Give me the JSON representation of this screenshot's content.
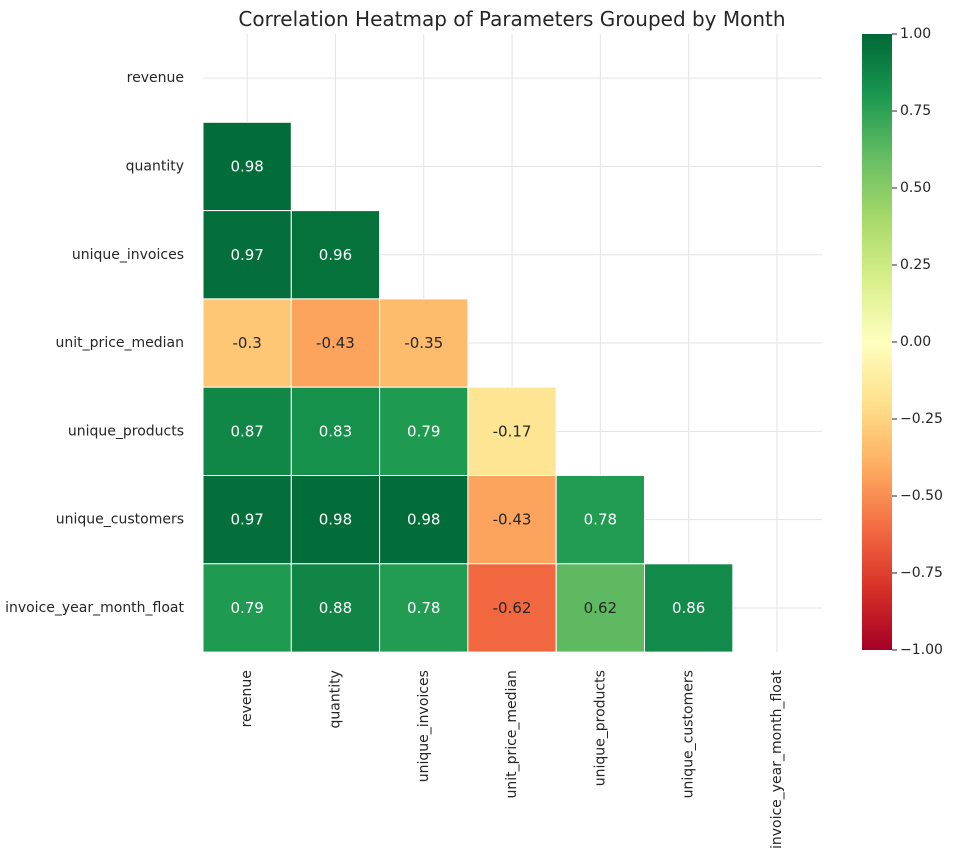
{
  "chart_data": {
    "type": "heatmap",
    "title": "Correlation Heatmap of Parameters Grouped by Month",
    "xlabel": "",
    "ylabel": "",
    "row_labels": [
      "revenue",
      "quantity",
      "unique_invoices",
      "unit_price_median",
      "unique_products",
      "unique_customers",
      "invoice_year_month_float"
    ],
    "col_labels": [
      "revenue",
      "quantity",
      "unique_invoices",
      "unit_price_median",
      "unique_products",
      "unique_customers",
      "invoice_year_month_float"
    ],
    "mask": "upper-triangle-including-diagonal",
    "values": [
      [
        null,
        null,
        null,
        null,
        null,
        null,
        null
      ],
      [
        0.98,
        null,
        null,
        null,
        null,
        null,
        null
      ],
      [
        0.97,
        0.96,
        null,
        null,
        null,
        null,
        null
      ],
      [
        -0.3,
        -0.43,
        -0.35,
        null,
        null,
        null,
        null
      ],
      [
        0.87,
        0.83,
        0.79,
        -0.17,
        null,
        null,
        null
      ],
      [
        0.97,
        0.98,
        0.98,
        -0.43,
        0.78,
        null,
        null
      ],
      [
        0.79,
        0.88,
        0.78,
        -0.62,
        0.62,
        0.86,
        null
      ]
    ],
    "colormap": "RdYlGn",
    "vmin": -1.0,
    "vmax": 1.0,
    "colorbar_ticks": [
      "1.00",
      "0.75",
      "0.50",
      "0.25",
      "0.00",
      "−0.25",
      "−0.50",
      "−0.75",
      "−1.00"
    ],
    "grid": true,
    "colorbar_position": "right"
  }
}
